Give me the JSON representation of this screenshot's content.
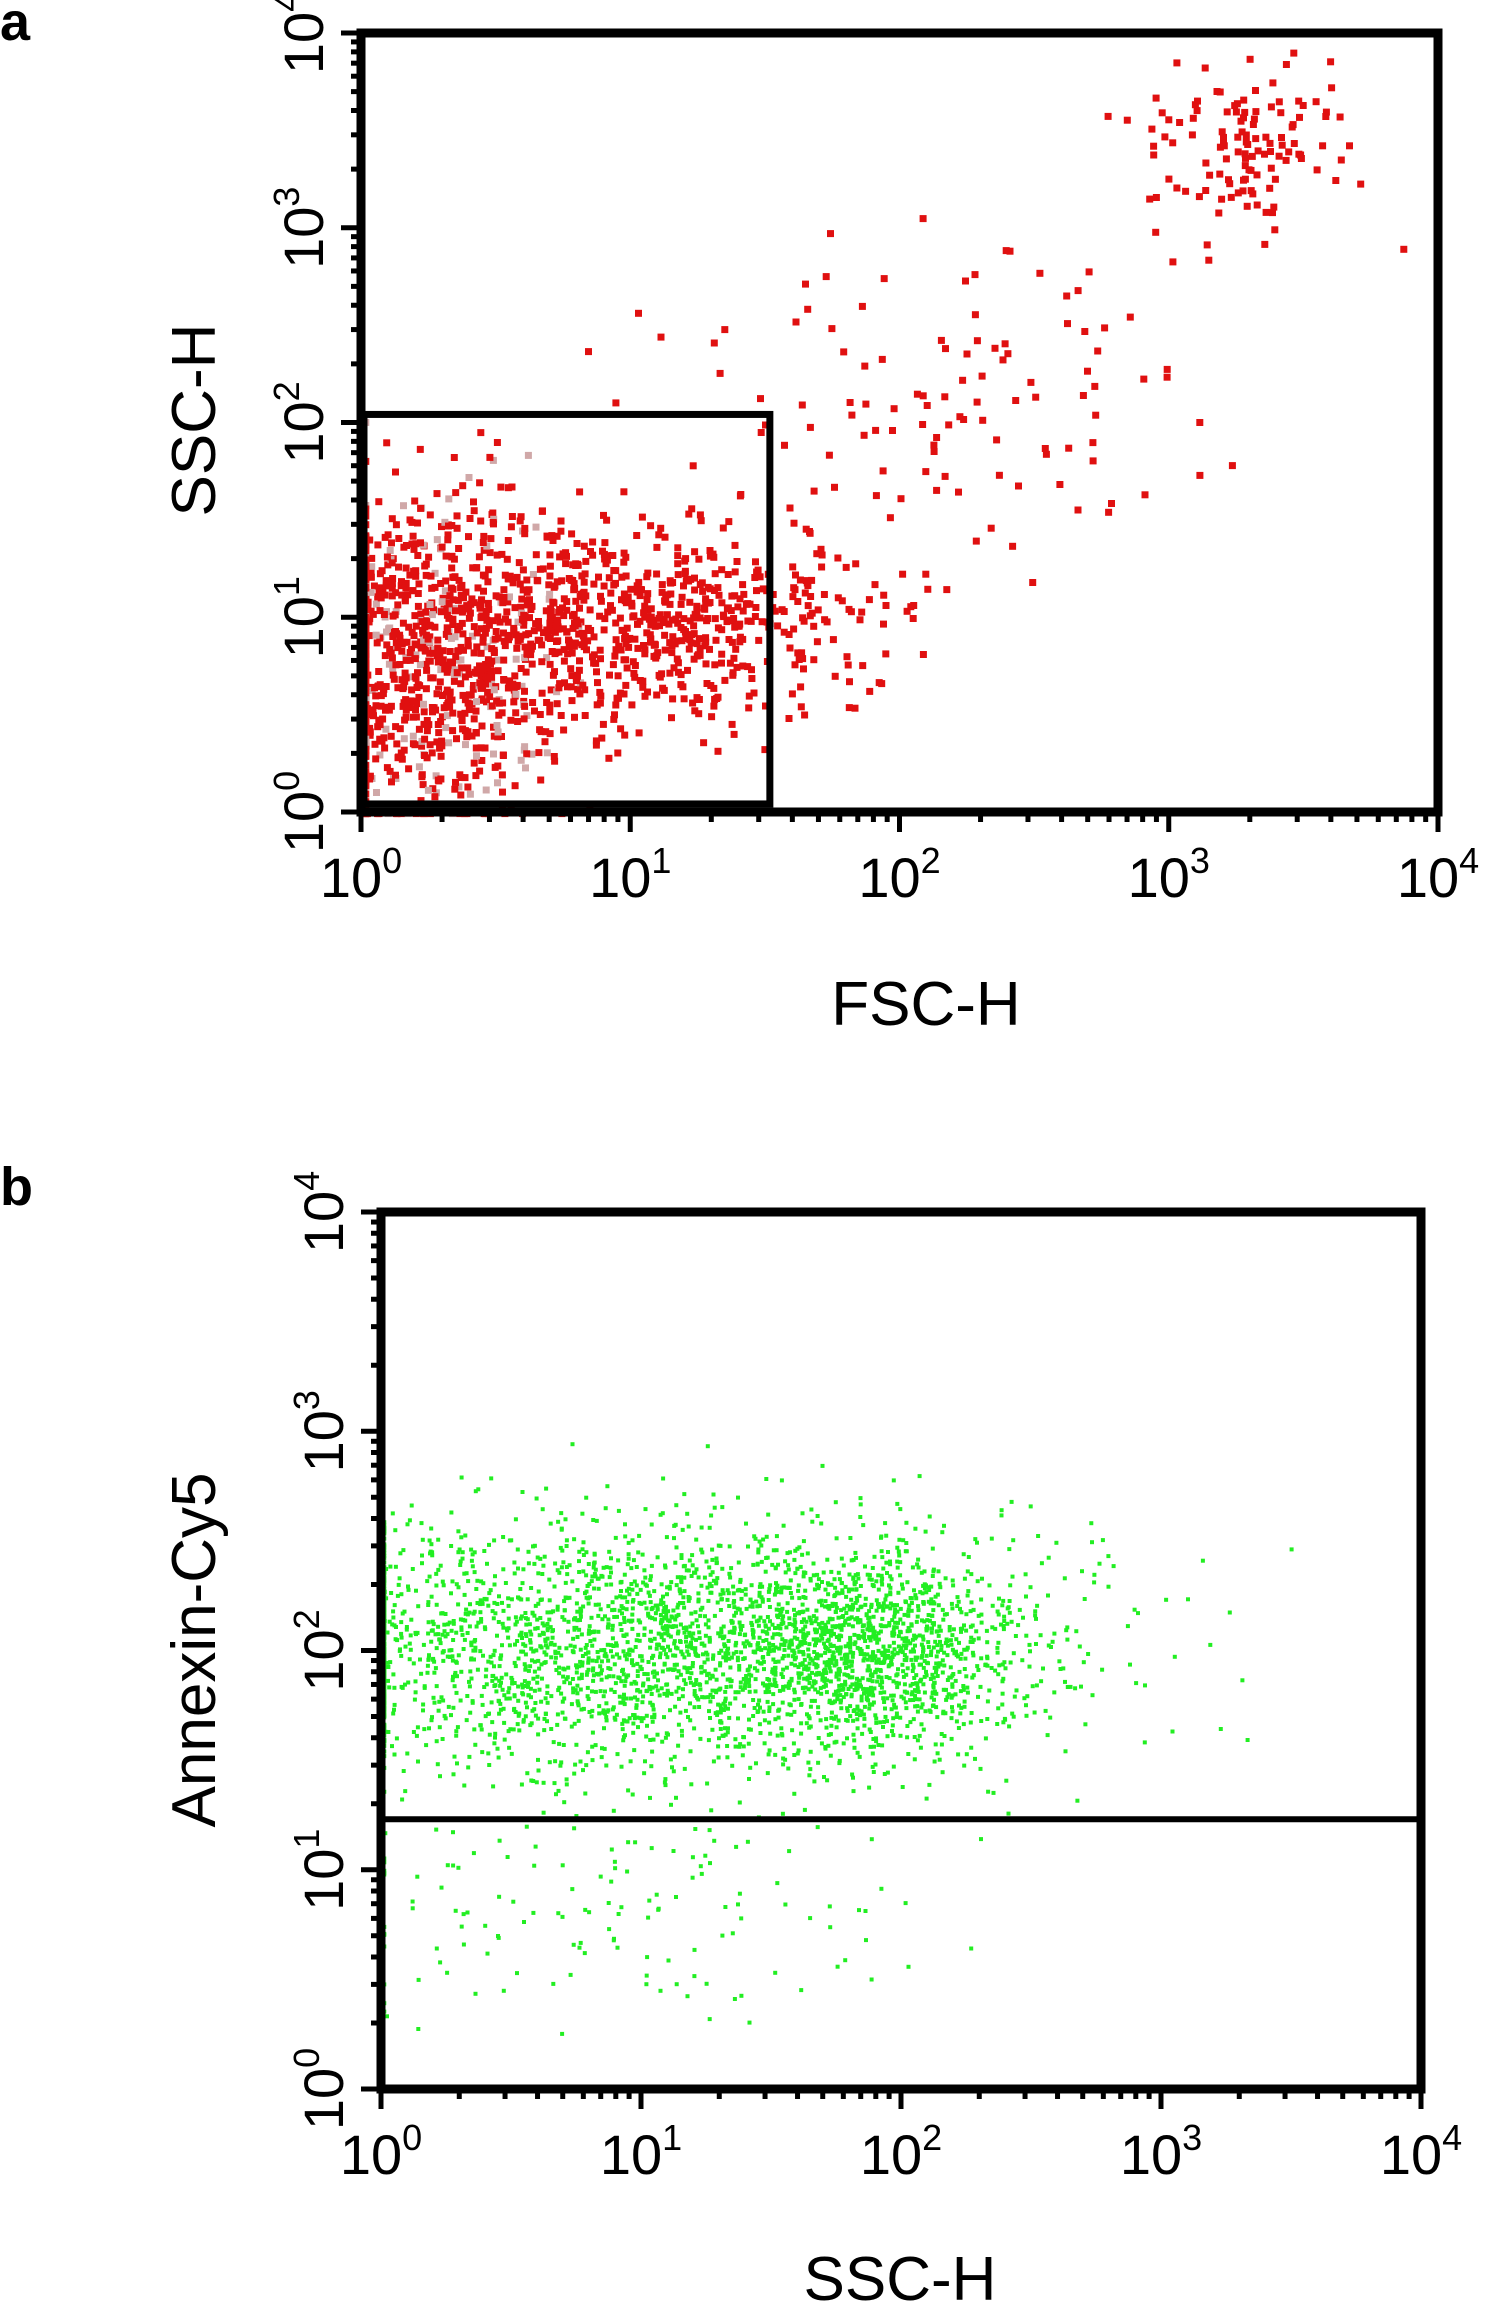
{
  "chart_data": [
    {
      "panel_label": "a",
      "type": "scatter",
      "title": "",
      "xlabel": "FSC-H",
      "ylabel": "SSC-H",
      "xscale": "log",
      "yscale": "log",
      "xlim": [
        1,
        10000
      ],
      "ylim": [
        1,
        10000
      ],
      "x_ticks": [
        {
          "base": "10",
          "exp": "0"
        },
        {
          "base": "10",
          "exp": "1"
        },
        {
          "base": "10",
          "exp": "2"
        },
        {
          "base": "10",
          "exp": "3"
        },
        {
          "base": "10",
          "exp": "4"
        }
      ],
      "y_ticks": [
        {
          "base": "10",
          "exp": "0"
        },
        {
          "base": "10",
          "exp": "1"
        },
        {
          "base": "10",
          "exp": "2"
        },
        {
          "base": "10",
          "exp": "3"
        },
        {
          "base": "10",
          "exp": "4"
        }
      ],
      "grid": false,
      "legend": "none",
      "point_color": "#e01010",
      "density_color": "#d0a8a8",
      "gate": {
        "shape": "rectangle",
        "x": [
          1,
          33
        ],
        "y": [
          1.1,
          110
        ]
      },
      "clusters": [
        {
          "description_of_region": "dense near axis origin",
          "x_center": 1.8,
          "y_center": 6,
          "x_spread_decades": 0.28,
          "y_spread_decades": 0.4,
          "count": 900
        },
        {
          "description_of_region": "band",
          "x_center": 10,
          "y_center": 10,
          "x_spread_decades": 0.45,
          "y_spread_decades": 0.25,
          "count": 700
        },
        {
          "description_of_region": "diagonal tail",
          "x_center": 150,
          "y_center": 150,
          "x_spread_decades": 0.6,
          "y_spread_decades": 0.45,
          "count": 120
        },
        {
          "description_of_region": "upper-right population",
          "x_center": 1800,
          "y_center": 2800,
          "x_spread_decades": 0.18,
          "y_spread_decades": 0.2,
          "count": 120
        }
      ]
    },
    {
      "panel_label": "b",
      "type": "scatter",
      "title": "",
      "xlabel": "SSC-H",
      "ylabel": "Annexin-Cy5",
      "xscale": "log",
      "yscale": "log",
      "xlim": [
        1,
        10000
      ],
      "ylim": [
        1,
        10000
      ],
      "x_ticks": [
        {
          "base": "10",
          "exp": "0"
        },
        {
          "base": "10",
          "exp": "1"
        },
        {
          "base": "10",
          "exp": "2"
        },
        {
          "base": "10",
          "exp": "3"
        },
        {
          "base": "10",
          "exp": "4"
        }
      ],
      "y_ticks": [
        {
          "base": "10",
          "exp": "0"
        },
        {
          "base": "10",
          "exp": "1"
        },
        {
          "base": "10",
          "exp": "2"
        },
        {
          "base": "10",
          "exp": "3"
        },
        {
          "base": "10",
          "exp": "4"
        }
      ],
      "grid": false,
      "legend": "none",
      "point_color": "#22ee22",
      "threshold_line": {
        "orientation": "horizontal",
        "y": 17
      },
      "clusters": [
        {
          "description_of_region": "main population",
          "x_center": 12,
          "y_center": 110,
          "x_spread_decades": 0.75,
          "y_spread_decades": 0.28,
          "count": 2600
        },
        {
          "description_of_region": "dense core",
          "x_center": 80,
          "y_center": 100,
          "x_spread_decades": 0.25,
          "y_spread_decades": 0.22,
          "count": 800
        },
        {
          "description_of_region": "below threshold",
          "x_center": 10,
          "y_center": 6,
          "x_spread_decades": 0.6,
          "y_spread_decades": 0.3,
          "count": 150
        }
      ]
    }
  ]
}
